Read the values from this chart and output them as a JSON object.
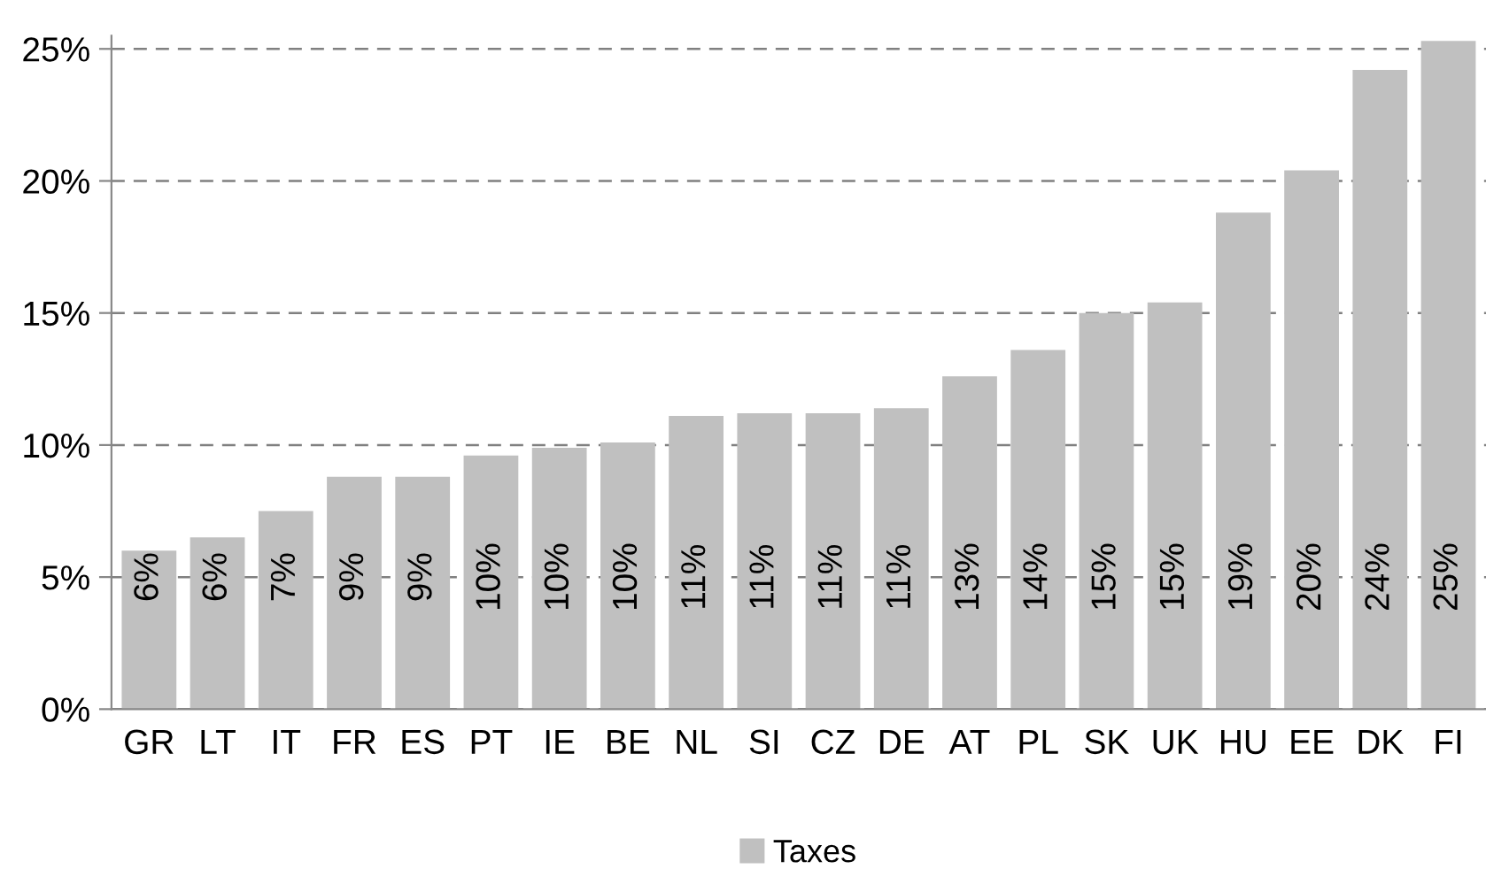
{
  "chart_data": {
    "type": "bar",
    "categories": [
      "GR",
      "LT",
      "IT",
      "FR",
      "ES",
      "PT",
      "IE",
      "BE",
      "NL",
      "SI",
      "CZ",
      "DE",
      "AT",
      "PL",
      "SK",
      "UK",
      "HU",
      "EE",
      "DK",
      "FI"
    ],
    "series": [
      {
        "name": "Taxes",
        "color": "#c0c0c0",
        "values": [
          6.0,
          6.5,
          7.5,
          8.8,
          8.8,
          9.6,
          9.9,
          10.1,
          11.1,
          11.2,
          11.2,
          11.4,
          12.6,
          13.6,
          15.0,
          15.4,
          18.8,
          20.4,
          24.2,
          25.3
        ],
        "value_labels": [
          "6%",
          "6%",
          "7%",
          "9%",
          "9%",
          "10%",
          "10%",
          "10%",
          "11%",
          "11%",
          "11%",
          "11%",
          "13%",
          "14%",
          "15%",
          "15%",
          "19%",
          "20%",
          "24%",
          "25%"
        ]
      }
    ],
    "ylim": [
      0,
      25.5
    ],
    "yticks": [
      {
        "value": 0,
        "label": "0%"
      },
      {
        "value": 5,
        "label": "5%"
      },
      {
        "value": 10,
        "label": "10%"
      },
      {
        "value": 15,
        "label": "15%"
      },
      {
        "value": 20,
        "label": "20%"
      },
      {
        "value": 25,
        "label": "25%"
      }
    ],
    "grid": "y",
    "line_style": "dashed",
    "legend": "bottom"
  }
}
